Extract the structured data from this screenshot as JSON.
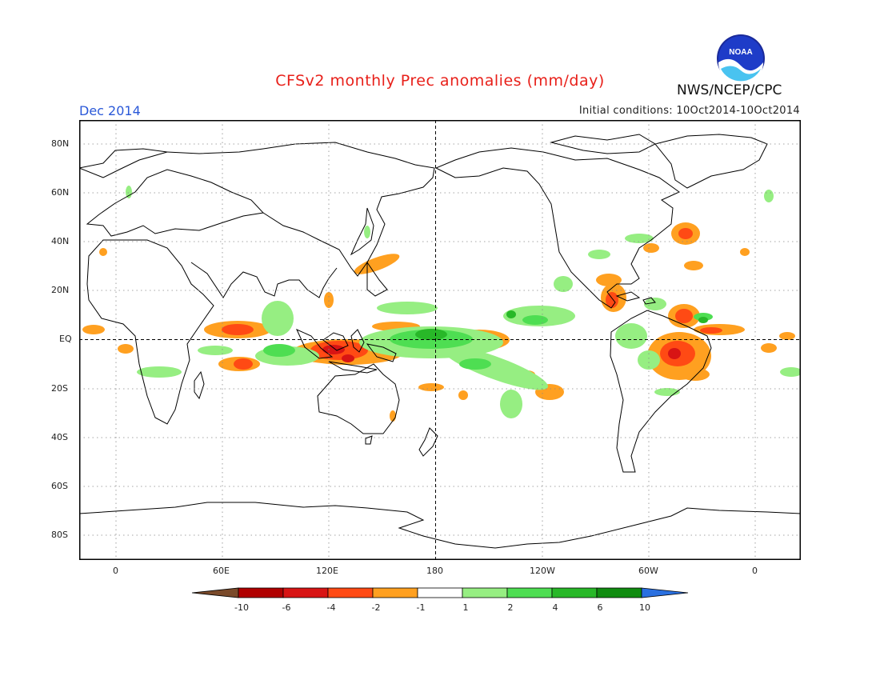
{
  "header": {
    "title": "CFSv2 monthly Prec anomalies (mm/day)",
    "month": "Dec 2014",
    "initial_conditions": "Initial conditions: 10Oct2014-10Oct2014",
    "agency": "NWS/NCEP/CPC",
    "logo_text": "NOAA"
  },
  "axes": {
    "lat_labels": [
      "80N",
      "60N",
      "40N",
      "20N",
      "EQ",
      "20S",
      "40S",
      "60S",
      "80S"
    ],
    "lon_labels": [
      "0",
      "60E",
      "120E",
      "180",
      "120W",
      "60W",
      "0"
    ]
  },
  "colorbar": {
    "tick_labels": [
      "-10",
      "-6",
      "-4",
      "-2",
      "-1",
      "1",
      "2",
      "4",
      "6",
      "10"
    ],
    "colors": [
      "#7a4a2a",
      "#b00000",
      "#d81414",
      "#ff4a14",
      "#ffa020",
      "#ffffff",
      "#96ee82",
      "#4ede52",
      "#28b828",
      "#108c10",
      "#2a70e0"
    ]
  },
  "map_data": {
    "legend_colors": {
      "dry_strong": "#d81414",
      "dry_moderate": "#ff4a14",
      "dry_weak": "#ffa020",
      "wet_weak": "#96ee82",
      "wet_moderate": "#4ede52",
      "wet_strong": "#28b828"
    }
  }
}
